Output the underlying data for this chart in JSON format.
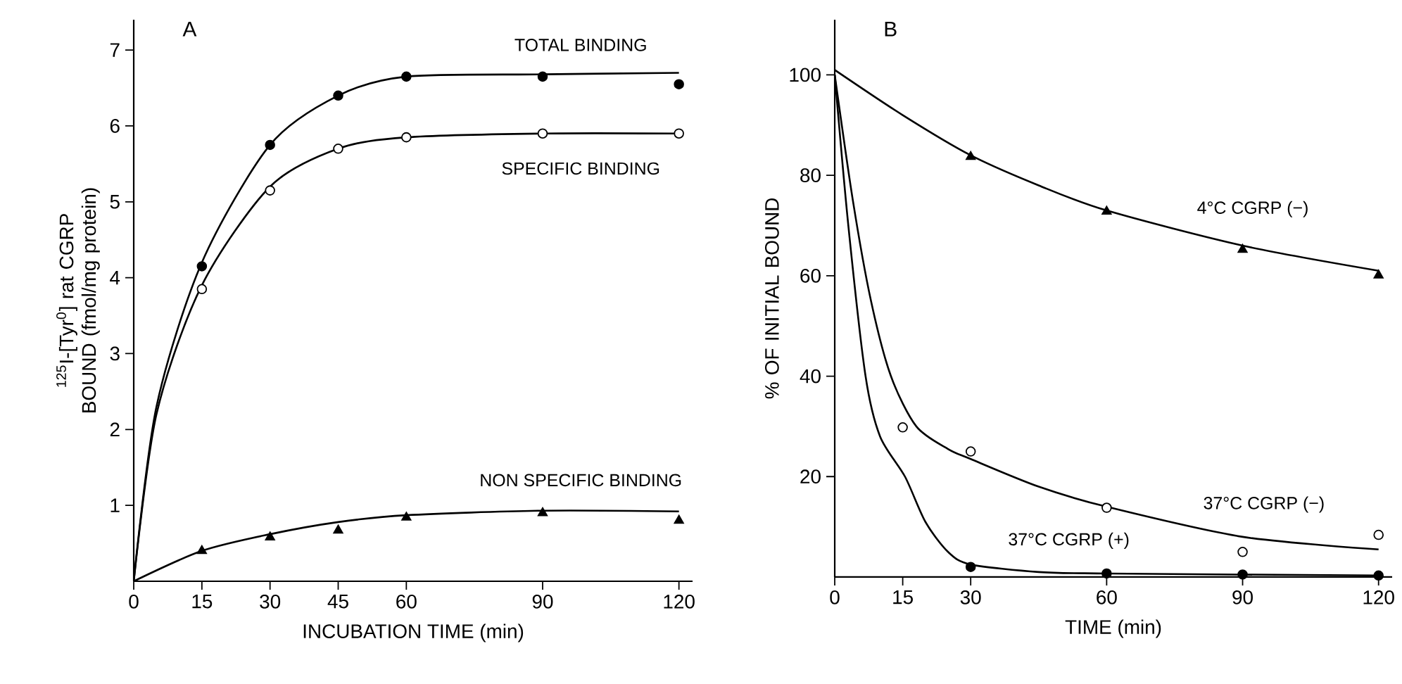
{
  "chart_data": [
    {
      "type": "line",
      "title": "A",
      "xlabel": "INCUBATION TIME (min)",
      "ylabel": "$^{125}$I-[Tyr$^{0}$] rat CGRP BOUND (fmol/mg protein)",
      "xlim": [
        0,
        123
      ],
      "ylim": [
        0,
        7.4
      ],
      "xticks": [
        0,
        15,
        30,
        45,
        60,
        90,
        120
      ],
      "yticks": [
        1,
        2,
        3,
        4,
        5,
        6,
        7
      ],
      "grid": false,
      "legend": false,
      "series": [
        {
          "color": "#000000",
          "marker": "none",
          "x": [
            0,
            5,
            15,
            30,
            45,
            60,
            90,
            120
          ],
          "values": [
            0,
            2.3,
            4.2,
            5.75,
            6.4,
            6.65,
            6.68,
            6.7
          ]
        },
        {
          "color": "#000000",
          "marker": "none",
          "x": [
            0,
            5,
            15,
            30,
            45,
            60,
            90,
            120
          ],
          "values": [
            0,
            2.2,
            3.9,
            5.2,
            5.7,
            5.85,
            5.9,
            5.9
          ]
        },
        {
          "color": "#000000",
          "marker": "none",
          "x": [
            0,
            15,
            30,
            45,
            60,
            90,
            120
          ],
          "values": [
            0,
            0.4,
            0.62,
            0.78,
            0.87,
            0.93,
            0.92
          ]
        },
        {
          "type": "scatter",
          "color": "#000000",
          "marker": "circle",
          "x": [
            15,
            30,
            45,
            60,
            90,
            120
          ],
          "values": [
            4.15,
            5.75,
            6.4,
            6.65,
            6.65,
            6.55
          ]
        },
        {
          "type": "scatter",
          "color": "#ffffff",
          "marker": "circle",
          "x": [
            15,
            30,
            45,
            60,
            90,
            120
          ],
          "values": [
            3.85,
            5.15,
            5.7,
            5.85,
            5.9,
            5.9
          ]
        },
        {
          "type": "scatter",
          "color": "#000000",
          "marker": "triangle",
          "x": [
            15,
            30,
            45,
            60,
            90,
            120
          ],
          "values": [
            0.4,
            0.58,
            0.67,
            0.84,
            0.9,
            0.8
          ]
        }
      ],
      "annotations": [
        "TOTAL BINDING",
        "SPECIFIC BINDING",
        "NON SPECIFIC BINDING"
      ]
    },
    {
      "type": "line",
      "title": "B",
      "xlabel": "TIME (min)",
      "ylabel": "% OF INITIAL BOUND",
      "xlim": [
        0,
        123
      ],
      "ylim": [
        0,
        111
      ],
      "xticks": [
        0,
        15,
        30,
        60,
        90,
        120
      ],
      "yticks": [
        20,
        40,
        60,
        80,
        100
      ],
      "grid": false,
      "legend": false,
      "series": [
        {
          "color": "#000000",
          "marker": "none",
          "x": [
            0,
            15,
            30,
            45,
            60,
            90,
            120
          ],
          "values": [
            101,
            92,
            84,
            78,
            73,
            66,
            61
          ]
        },
        {
          "color": "#000000",
          "marker": "none",
          "x": [
            0,
            4,
            8,
            12.4,
            18,
            25,
            30,
            45,
            60,
            90,
            120
          ],
          "values": [
            100,
            75,
            55,
            40,
            30,
            25.5,
            23.5,
            18,
            14,
            8,
            5.5
          ]
        },
        {
          "color": "#000000",
          "marker": "none",
          "x": [
            0,
            3,
            6.8,
            10,
            15.5,
            20,
            25,
            30,
            45,
            60,
            120
          ],
          "values": [
            100,
            70,
            40,
            28,
            20,
            11,
            5,
            2.5,
            1,
            0.7,
            0.3
          ]
        },
        {
          "type": "scatter",
          "color": "#000000",
          "marker": "triangle",
          "x": [
            30,
            60,
            90,
            120
          ],
          "values": [
            83.7,
            72.8,
            65.2,
            60.1
          ]
        },
        {
          "type": "scatter",
          "color": "#ffffff",
          "marker": "circle",
          "x": [
            15,
            30,
            60,
            90,
            120
          ],
          "values": [
            29.8,
            25,
            13.8,
            5,
            8.4
          ]
        },
        {
          "type": "scatter",
          "color": "#000000",
          "marker": "circle",
          "x": [
            30,
            60,
            90,
            120
          ],
          "values": [
            2,
            0.7,
            0.5,
            0.3
          ]
        }
      ],
      "annotations": [
        "4°C CGRP (−)",
        "37°C CGRP (−)",
        "37°C CGRP (+)"
      ]
    }
  ]
}
